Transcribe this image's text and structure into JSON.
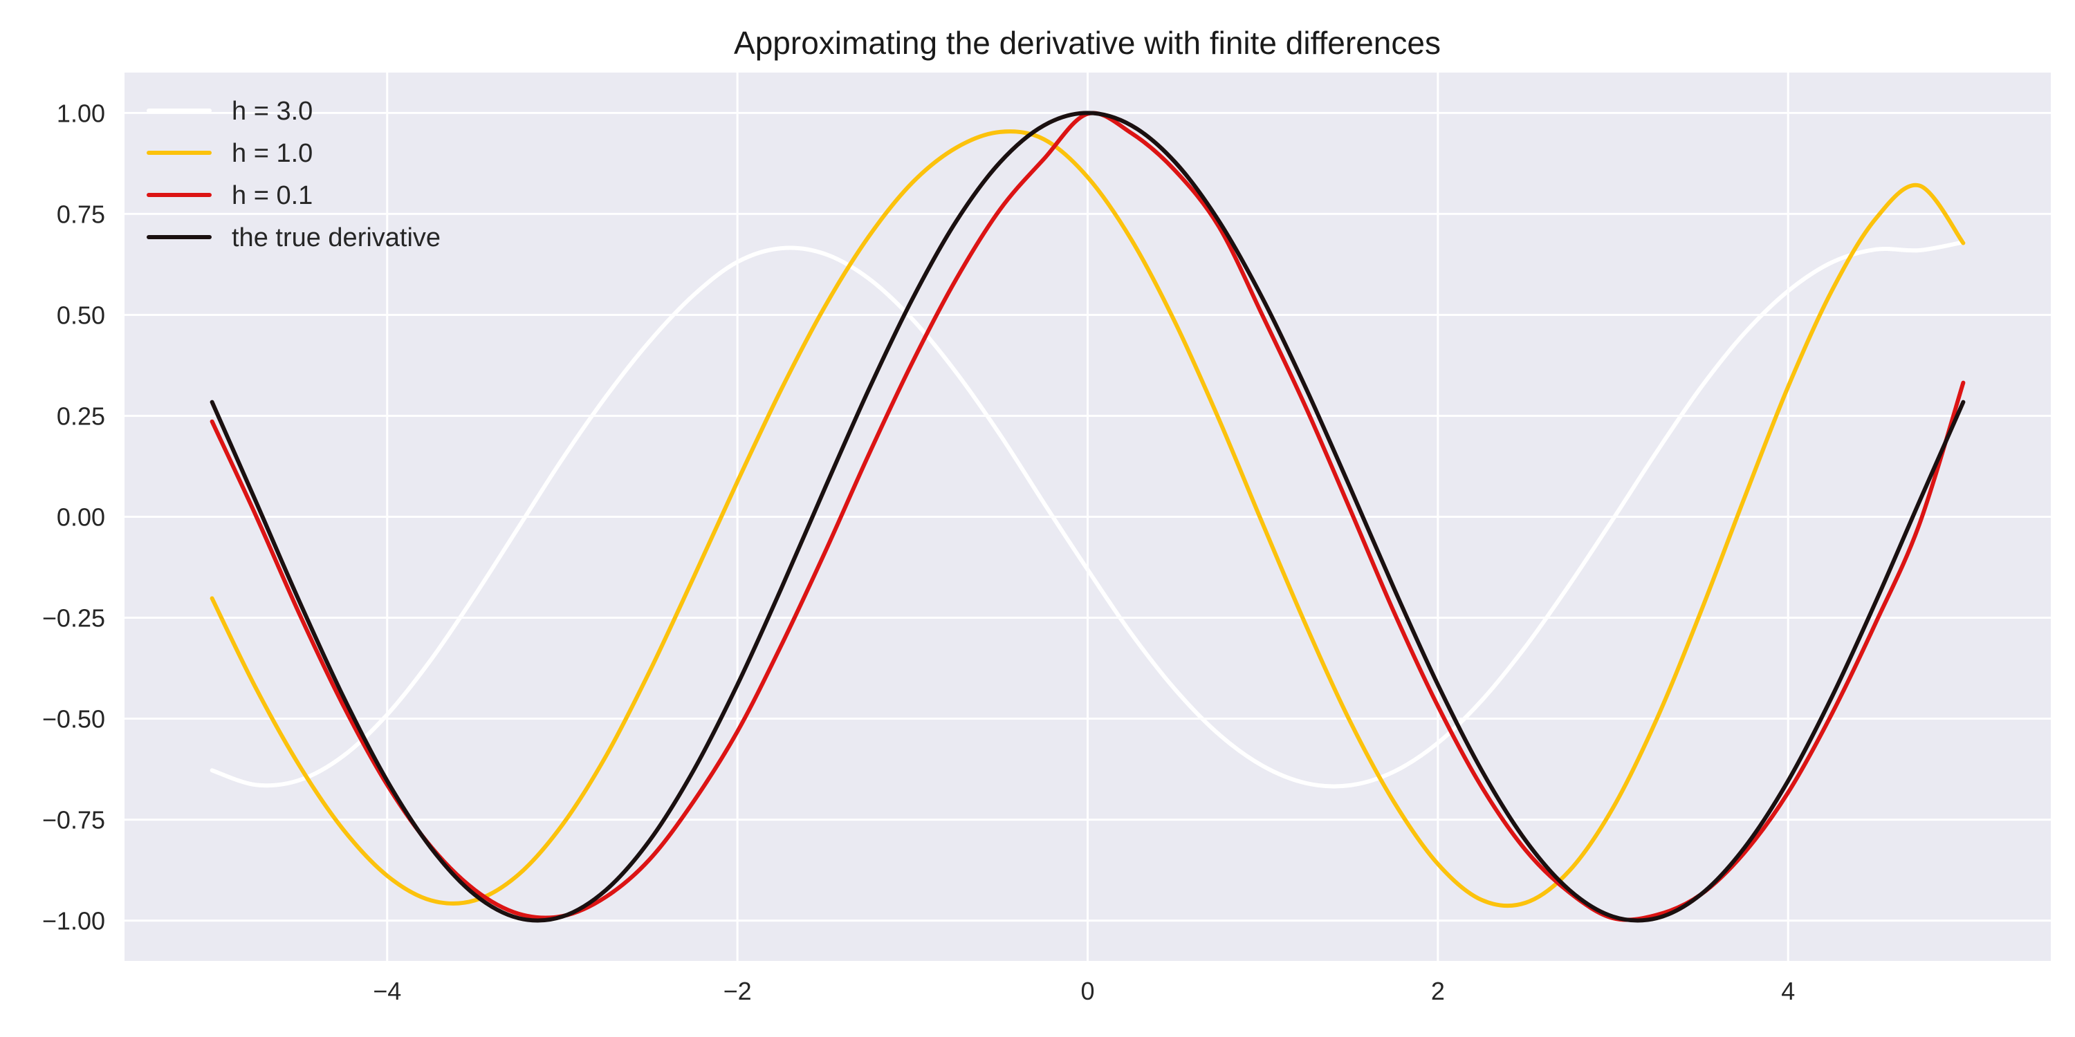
{
  "chart_data": {
    "type": "line",
    "title": "Approximating the derivative with finite differences",
    "xlabel": "",
    "ylabel": "",
    "xlim": [
      -5.5,
      5.5
    ],
    "ylim": [
      -1.1,
      1.1
    ],
    "xticks": [
      {
        "value": -4,
        "label": "−4"
      },
      {
        "value": -2,
        "label": "−2"
      },
      {
        "value": 0,
        "label": "0"
      },
      {
        "value": 2,
        "label": "2"
      },
      {
        "value": 4,
        "label": "4"
      }
    ],
    "yticks": [
      {
        "value": 1.0,
        "label": "1.00"
      },
      {
        "value": 0.75,
        "label": "0.75"
      },
      {
        "value": 0.5,
        "label": "0.50"
      },
      {
        "value": 0.25,
        "label": "0.25"
      },
      {
        "value": 0.0,
        "label": "0.00"
      },
      {
        "value": -0.25,
        "label": "−0.25"
      },
      {
        "value": -0.5,
        "label": "−0.50"
      },
      {
        "value": -0.75,
        "label": "−0.75"
      },
      {
        "value": -1.0,
        "label": "−1.00"
      }
    ],
    "grid": true,
    "legend_position": "top-left",
    "background_color": "#eaeaf2",
    "grid_color": "#ffffff",
    "series": [
      {
        "name": "h = 3.0",
        "color": "#ffffff",
        "x": [
          -5.0,
          -4.75,
          -4.5,
          -4.25,
          -4.0,
          -3.75,
          -3.5,
          -3.25,
          -3.0,
          -2.75,
          -2.5,
          -2.25,
          -2.0,
          -1.75,
          -1.5,
          -1.25,
          -1.0,
          -0.75,
          -0.5,
          -0.25,
          0.0,
          0.25,
          0.5,
          0.75,
          1.0,
          1.25,
          1.5,
          1.75,
          2.0,
          2.25,
          2.5,
          2.75,
          3.0,
          3.25,
          3.5,
          3.75,
          4.0,
          4.25,
          4.5,
          4.75,
          5.0
        ],
        "y": [
          -0.628,
          -0.664,
          -0.652,
          -0.592,
          -0.49,
          -0.354,
          -0.195,
          -0.026,
          0.143,
          0.298,
          0.435,
          0.549,
          0.631,
          0.665,
          0.651,
          0.59,
          0.489,
          0.357,
          0.203,
          0.034,
          -0.131,
          -0.29,
          -0.428,
          -0.539,
          -0.617,
          -0.66,
          -0.665,
          -0.631,
          -0.56,
          -0.455,
          -0.322,
          -0.169,
          -0.006,
          0.161,
          0.319,
          0.454,
          0.559,
          0.63,
          0.662,
          0.66,
          0.68
        ]
      },
      {
        "name": "h = 1.0",
        "color": "#fcc20c",
        "x": [
          -5.0,
          -4.75,
          -4.5,
          -4.25,
          -4.0,
          -3.75,
          -3.5,
          -3.25,
          -3.0,
          -2.75,
          -2.5,
          -2.25,
          -2.0,
          -1.75,
          -1.5,
          -1.25,
          -1.0,
          -0.75,
          -0.5,
          -0.25,
          0.0,
          0.25,
          0.5,
          0.75,
          1.0,
          1.25,
          1.5,
          1.75,
          2.0,
          2.25,
          2.5,
          2.75,
          3.0,
          3.25,
          3.5,
          3.75,
          4.0,
          4.25,
          4.5,
          4.75,
          5.0
        ],
        "y": [
          -0.202,
          -0.424,
          -0.617,
          -0.775,
          -0.889,
          -0.95,
          -0.95,
          -0.886,
          -0.763,
          -0.592,
          -0.382,
          -0.15,
          0.087,
          0.315,
          0.521,
          0.694,
          0.828,
          0.914,
          0.953,
          0.935,
          0.841,
          0.686,
          0.481,
          0.241,
          -0.018,
          -0.272,
          -0.508,
          -0.707,
          -0.86,
          -0.949,
          -0.956,
          -0.877,
          -0.721,
          -0.501,
          -0.237,
          0.046,
          0.322,
          0.56,
          0.738,
          0.82,
          0.678
        ]
      },
      {
        "name": "h = 0.1",
        "color": "#dc1414",
        "x": [
          -5.0,
          -4.75,
          -4.5,
          -4.25,
          -4.0,
          -3.75,
          -3.5,
          -3.25,
          -3.0,
          -2.75,
          -2.5,
          -2.25,
          -2.0,
          -1.75,
          -1.5,
          -1.25,
          -1.0,
          -0.75,
          -0.5,
          -0.25,
          0.0,
          0.25,
          0.5,
          0.75,
          1.0,
          1.25,
          1.5,
          1.75,
          2.0,
          2.25,
          2.5,
          2.75,
          3.0,
          3.25,
          3.5,
          3.75,
          4.0,
          4.25,
          4.5,
          4.75,
          5.0
        ],
        "y": [
          0.236,
          0.003,
          -0.242,
          -0.468,
          -0.664,
          -0.817,
          -0.924,
          -0.983,
          -0.989,
          -0.941,
          -0.848,
          -0.705,
          -0.532,
          -0.319,
          -0.088,
          0.154,
          0.383,
          0.589,
          0.761,
          0.886,
          0.998,
          0.95,
          0.857,
          0.718,
          0.497,
          0.267,
          0.017,
          -0.237,
          -0.469,
          -0.669,
          -0.825,
          -0.93,
          -0.994,
          -0.986,
          -0.936,
          -0.832,
          -0.683,
          -0.488,
          -0.263,
          -0.018,
          0.332
        ]
      },
      {
        "name": "the true derivative",
        "color": "#1a1010",
        "x": [
          -5.0,
          -4.75,
          -4.5,
          -4.25,
          -4.0,
          -3.75,
          -3.5,
          -3.25,
          -3.0,
          -2.75,
          -2.5,
          -2.25,
          -2.0,
          -1.75,
          -1.5,
          -1.25,
          -1.0,
          -0.75,
          -0.5,
          -0.25,
          0.0,
          0.25,
          0.5,
          0.75,
          1.0,
          1.25,
          1.5,
          1.75,
          2.0,
          2.25,
          2.5,
          2.75,
          3.0,
          3.25,
          3.5,
          3.75,
          4.0,
          4.25,
          4.5,
          4.75,
          5.0
        ],
        "y": [
          0.284,
          0.038,
          -0.211,
          -0.446,
          -0.654,
          -0.82,
          -0.936,
          -0.994,
          -0.99,
          -0.924,
          -0.801,
          -0.628,
          -0.416,
          -0.178,
          0.071,
          0.315,
          0.54,
          0.732,
          0.878,
          0.969,
          1.0,
          0.969,
          0.878,
          0.732,
          0.54,
          0.315,
          0.071,
          -0.178,
          -0.416,
          -0.628,
          -0.801,
          -0.924,
          -0.99,
          -0.994,
          -0.936,
          -0.82,
          -0.654,
          -0.446,
          -0.211,
          0.038,
          0.284
        ]
      }
    ]
  }
}
